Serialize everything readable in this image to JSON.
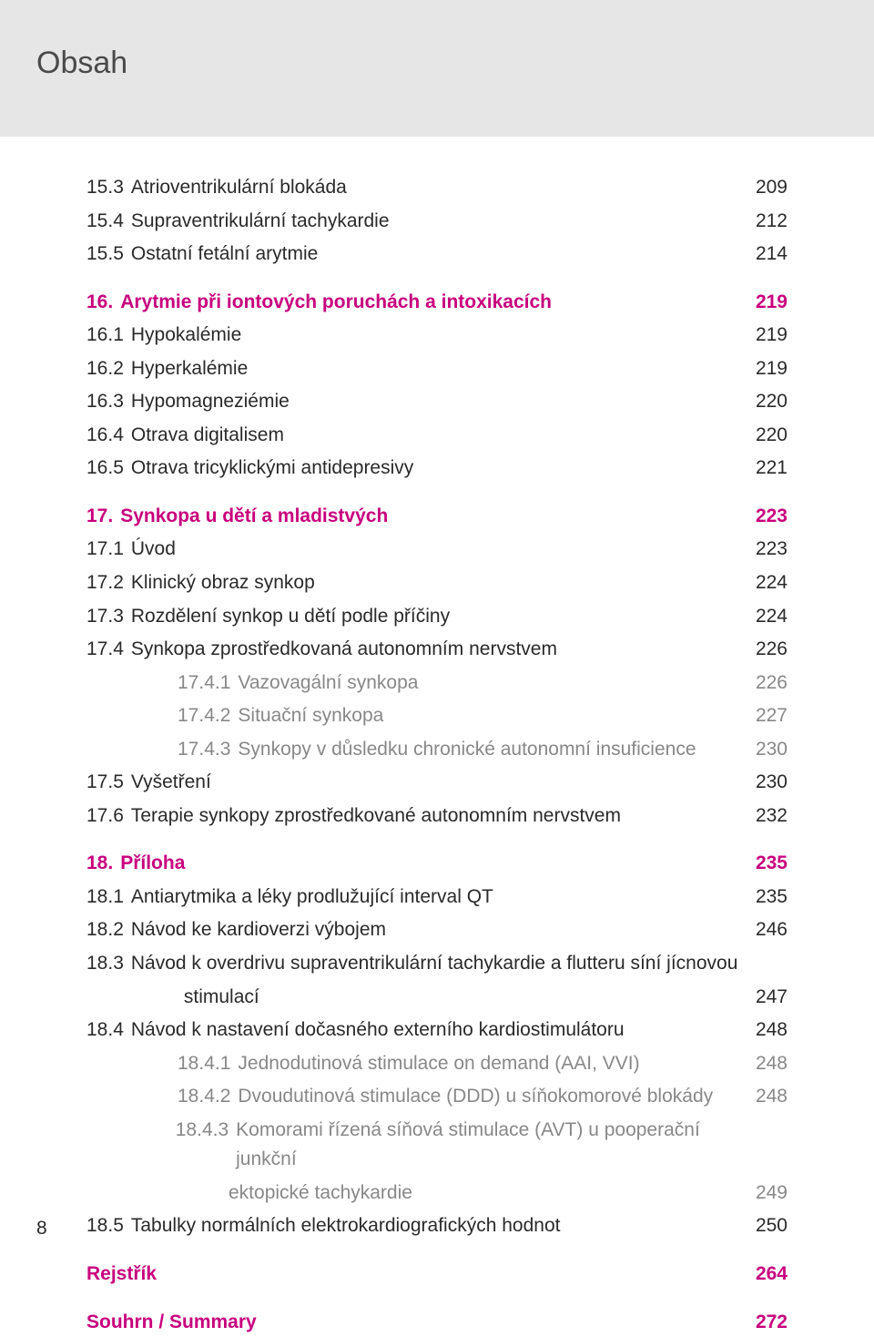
{
  "header": {
    "title": "Obsah"
  },
  "page_number": "8",
  "colors": {
    "accent": "#c8007d",
    "text": "#2a2a2a",
    "muted": "#888888",
    "header_bg": "#e6e6e6",
    "page_bg": "#ffffff"
  },
  "typography": {
    "title_size_pt": 26,
    "body_size_pt": 16,
    "family": "Segoe UI / Myriad Pro"
  },
  "toc": [
    {
      "num": "15.3",
      "label": "Atrioventrikulární blokáda",
      "page": "209",
      "level": 2,
      "indent": 2
    },
    {
      "num": "15.4",
      "label": "Supraventrikulární tachykardie",
      "page": "212",
      "level": 2,
      "indent": 2
    },
    {
      "num": "15.5",
      "label": "Ostatní fetální arytmie",
      "page": "214",
      "level": 2,
      "indent": 2
    },
    {
      "num": "16.",
      "label": "Arytmie při iontových poruchách a intoxikacích",
      "page": "219",
      "level": 1,
      "indent": 1,
      "gap": true
    },
    {
      "num": "16.1",
      "label": "Hypokalémie",
      "page": "219",
      "level": 2,
      "indent": 2
    },
    {
      "num": "16.2",
      "label": "Hyperkalémie",
      "page": "219",
      "level": 2,
      "indent": 2
    },
    {
      "num": "16.3",
      "label": "Hypomagneziémie",
      "page": "220",
      "level": 2,
      "indent": 2
    },
    {
      "num": "16.4",
      "label": "Otrava digitalisem",
      "page": "220",
      "level": 2,
      "indent": 2
    },
    {
      "num": "16.5",
      "label": "Otrava tricyklickými antidepresivy",
      "page": "221",
      "level": 2,
      "indent": 2
    },
    {
      "num": "17.",
      "label": "Synkopa u dětí a mladistvých",
      "page": "223",
      "level": 1,
      "indent": 1,
      "gap": true
    },
    {
      "num": "17.1",
      "label": "Úvod",
      "page": "223",
      "level": 2,
      "indent": 2
    },
    {
      "num": "17.2",
      "label": "Klinický obraz synkop",
      "page": "224",
      "level": 2,
      "indent": 2
    },
    {
      "num": "17.3",
      "label": "Rozdělení synkop u dětí podle příčiny",
      "page": "224",
      "level": 2,
      "indent": 2
    },
    {
      "num": "17.4",
      "label": "Synkopa zprostředkovaná autonomním nervstvem",
      "page": "226",
      "level": 2,
      "indent": 2
    },
    {
      "num": "17.4.1",
      "label": "Vazovagální synkopa",
      "page": "226",
      "level": 3,
      "indent": 3
    },
    {
      "num": "17.4.2",
      "label": "Situační synkopa",
      "page": "227",
      "level": 3,
      "indent": 3
    },
    {
      "num": "17.4.3",
      "label": "Synkopy v důsledku chronické autonomní insuficience",
      "page": "230",
      "level": 3,
      "indent": 3
    },
    {
      "num": "17.5",
      "label": "Vyšetření",
      "page": "230",
      "level": 2,
      "indent": 2
    },
    {
      "num": "17.6",
      "label": "Terapie synkopy zprostředkované autonomním nervstvem",
      "page": "232",
      "level": 2,
      "indent": 2
    },
    {
      "num": "18.",
      "label": "Příloha",
      "page": "235",
      "level": 1,
      "indent": 1,
      "gap": true
    },
    {
      "num": "18.1",
      "label": "Antiarytmika a léky prodlužující interval QT",
      "page": "235",
      "level": 2,
      "indent": 2
    },
    {
      "num": "18.2",
      "label": "Návod ke kardioverzi výbojem",
      "page": "246",
      "level": 2,
      "indent": 2
    },
    {
      "num": "18.3",
      "label": "Návod k overdrivu supraventrikulární tachykardie a flutteru síní jícnovou",
      "page": "",
      "level": 2,
      "indent": 2
    },
    {
      "num": "",
      "label": "stimulací",
      "page": "247",
      "level": 2,
      "indent": 2,
      "cont": true
    },
    {
      "num": "18.4",
      "label": "Návod k nastavení dočasného externího kardiostimulátoru",
      "page": "248",
      "level": 2,
      "indent": 2
    },
    {
      "num": "18.4.1",
      "label": "Jednodutinová stimulace on demand (AAI, VVI)",
      "page": "248",
      "level": 3,
      "indent": 3
    },
    {
      "num": "18.4.2",
      "label": "Dvoudutinová stimulace (DDD) u síňokomorové blokády",
      "page": "248",
      "level": 3,
      "indent": 3
    },
    {
      "num": "18.4.3",
      "label": "Komorami řízená síňová stimulace (AVT) u pooperační junkční",
      "page": "",
      "level": 3,
      "indent": 3
    },
    {
      "num": "",
      "label": "ektopické tachykardie",
      "page": "249",
      "level": 3,
      "indent": 3,
      "cont3": true
    },
    {
      "num": "18.5",
      "label": "Tabulky normálních elektrokardiografických hodnot",
      "page": "250",
      "level": 2,
      "indent": 2
    },
    {
      "num": "",
      "label": "Rejstřík",
      "page": "264",
      "level": 1,
      "indent": 1,
      "gap": true,
      "standalone": true
    },
    {
      "num": "",
      "label": "Souhrn / Summary",
      "page": "272",
      "level": 1,
      "indent": 1,
      "gap": true,
      "standalone": true
    }
  ]
}
